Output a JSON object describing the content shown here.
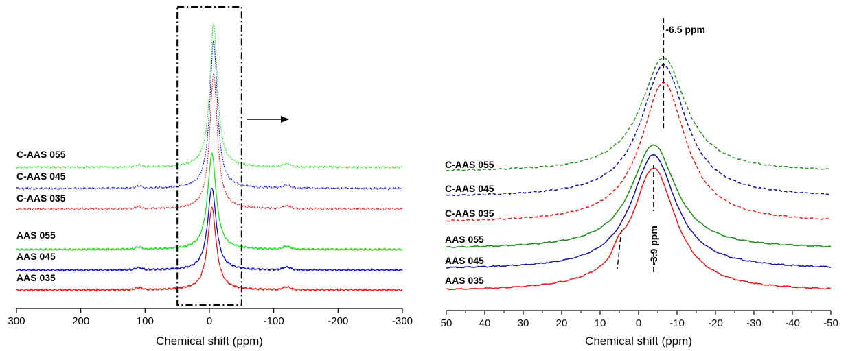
{
  "chart_data": [
    {
      "type": "line",
      "xlabel": "Chemical shift (ppm)",
      "xlim": [
        300,
        -300
      ],
      "xticks": [
        300,
        200,
        100,
        0,
        -100,
        -200,
        -300
      ],
      "colors": {
        "aas": "#e31a1c",
        "blue": "#1010c8",
        "green": "#1fe01f"
      },
      "series": [
        {
          "name": "C-AAS 055",
          "color": "#1fe01f",
          "dashed": true,
          "peak_ppm": -6.5,
          "peak_height": 1.0,
          "width": 7,
          "baseline": 0,
          "bumps": [
            {
              "x": 110,
              "h": 0.015,
              "w": 5
            },
            {
              "x": -120,
              "h": 0.02,
              "w": 6
            }
          ]
        },
        {
          "name": "C-AAS 045",
          "color": "#1010c8",
          "dashed": true,
          "peak_ppm": -6.5,
          "peak_height": 1.0,
          "width": 7,
          "baseline": 0,
          "bumps": [
            {
              "x": 110,
              "h": 0.015,
              "w": 5
            },
            {
              "x": -120,
              "h": 0.02,
              "w": 6
            }
          ]
        },
        {
          "name": "C-AAS 035",
          "color": "#e31a1c",
          "dashed": true,
          "peak_ppm": -6.5,
          "peak_height": 0.92,
          "width": 7,
          "baseline": 0,
          "bumps": [
            {
              "x": 110,
              "h": 0.015,
              "w": 5
            },
            {
              "x": -120,
              "h": 0.02,
              "w": 6
            }
          ]
        },
        {
          "name": "AAS 055",
          "color": "#1fe01f",
          "dashed": false,
          "peak_ppm": -3.9,
          "peak_height": 0.65,
          "width": 8,
          "baseline": 0,
          "bumps": [
            {
              "x": 110,
              "h": 0.015,
              "w": 5
            },
            {
              "x": -120,
              "h": 0.02,
              "w": 6
            }
          ]
        },
        {
          "name": "AAS 045",
          "color": "#1010c8",
          "dashed": false,
          "peak_ppm": -3.9,
          "peak_height": 0.6,
          "width": 8,
          "baseline": 0,
          "bumps": [
            {
              "x": 110,
              "h": 0.015,
              "w": 5
            },
            {
              "x": -120,
              "h": 0.02,
              "w": 6
            }
          ]
        },
        {
          "name": "AAS 035",
          "color": "#e31a1c",
          "dashed": false,
          "peak_ppm": -3.9,
          "peak_height": 0.6,
          "width": 8,
          "baseline": 0,
          "bumps": [
            {
              "x": 110,
              "h": 0.015,
              "w": 5
            },
            {
              "x": -120,
              "h": 0.02,
              "w": 6
            }
          ]
        }
      ],
      "highlight_box_ppm": [
        50,
        -50
      ]
    },
    {
      "type": "line",
      "xlabel": "Chemical shift (ppm)",
      "xlim": [
        50,
        -50
      ],
      "xticks": [
        50,
        40,
        30,
        20,
        10,
        0,
        -10,
        -20,
        -30,
        -40,
        -50
      ],
      "series": [
        {
          "name": "C-AAS 055",
          "color": "#1a8c1a",
          "dashed": true,
          "peak_ppm": -6.5,
          "peak_height": 1.0,
          "width": 7
        },
        {
          "name": "C-AAS 045",
          "color": "#1010a0",
          "dashed": true,
          "peak_ppm": -6.5,
          "peak_height": 1.0,
          "width": 7
        },
        {
          "name": "C-AAS 035",
          "color": "#e31a1c",
          "dashed": true,
          "peak_ppm": -6.5,
          "peak_height": 1.0,
          "width": 7
        },
        {
          "name": "AAS 055",
          "color": "#1a8c1a",
          "dashed": false,
          "peak_ppm": -3.9,
          "peak_height": 1.0,
          "width": 7
        },
        {
          "name": "AAS 045",
          "color": "#1010a0",
          "dashed": false,
          "peak_ppm": -3.9,
          "peak_height": 1.0,
          "width": 7
        },
        {
          "name": "AAS 035",
          "color": "#e31a1c",
          "dashed": false,
          "peak_ppm": -3.9,
          "peak_height": 1.0,
          "width": 7,
          "shoulder_ppm": 5
        }
      ],
      "annotations": [
        {
          "text": "-6.5 ppm",
          "x_ppm": -6.5
        },
        {
          "text": "-3.9 ppm",
          "x_ppm": -3.9
        },
        {
          "text": "",
          "x_ppm": 5
        }
      ]
    }
  ]
}
